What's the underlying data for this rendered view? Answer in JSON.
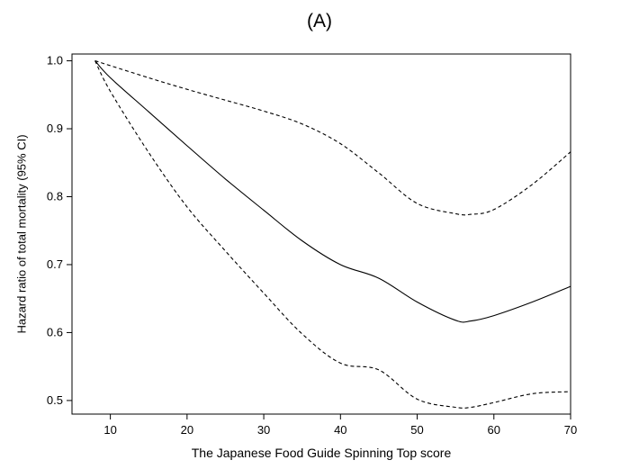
{
  "chart_data": {
    "type": "line",
    "title": "(A)",
    "xlabel": "The Japanese Food Guide Spinning Top score",
    "ylabel": "Hazard ratio of total mortality (95% CI)",
    "xlim": [
      5,
      70
    ],
    "ylim": [
      0.48,
      1.01
    ],
    "x_ticks": [
      10,
      20,
      30,
      40,
      50,
      60,
      70
    ],
    "x_tick_labels": [
      "10",
      "20",
      "30",
      "40",
      "50",
      "60",
      "70"
    ],
    "y_ticks": [
      0.5,
      0.6,
      0.7,
      0.8,
      0.9,
      1.0
    ],
    "y_tick_labels": [
      "0.5",
      "0.6",
      "0.7",
      "0.8",
      "0.9",
      "1.0"
    ],
    "grid": false,
    "series": [
      {
        "style": "solid",
        "x": [
          8,
          10,
          15,
          20,
          25,
          30,
          35,
          40,
          45,
          50,
          55,
          57,
          60,
          65,
          70
        ],
        "y": [
          1.0,
          0.975,
          0.925,
          0.875,
          0.826,
          0.78,
          0.735,
          0.7,
          0.68,
          0.645,
          0.618,
          0.617,
          0.625,
          0.645,
          0.668
        ]
      },
      {
        "style": "dashed",
        "x": [
          8,
          15,
          20,
          25,
          30,
          35,
          40,
          45,
          50,
          55,
          57,
          60,
          65,
          70
        ],
        "y": [
          1.0,
          0.975,
          0.958,
          0.942,
          0.926,
          0.907,
          0.878,
          0.835,
          0.79,
          0.775,
          0.774,
          0.781,
          0.818,
          0.866
        ]
      },
      {
        "style": "dashed",
        "x": [
          8,
          10,
          15,
          20,
          25,
          30,
          35,
          40,
          45,
          50,
          55,
          57,
          60,
          65,
          70
        ],
        "y": [
          1.0,
          0.955,
          0.865,
          0.785,
          0.72,
          0.658,
          0.598,
          0.555,
          0.545,
          0.502,
          0.49,
          0.49,
          0.497,
          0.51,
          0.513
        ]
      }
    ]
  }
}
